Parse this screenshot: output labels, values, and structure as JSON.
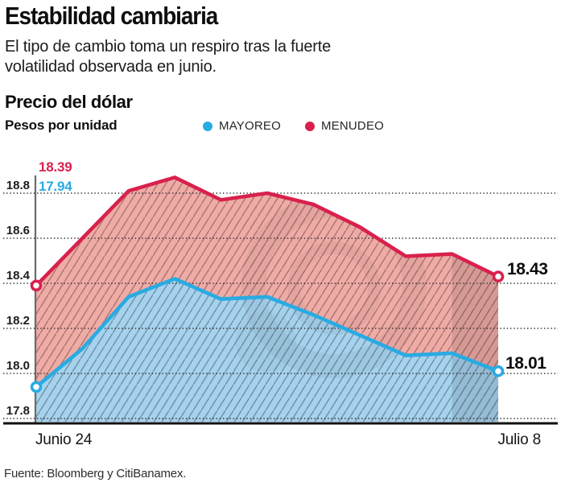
{
  "header": {
    "title": "Estabilidad cambiaria",
    "subtitle": "El tipo de cambio toma un respiro tras la fuerte\nvolatilidad observada en junio."
  },
  "chart": {
    "title": "Precio del dólar",
    "units": "Pesos por unidad",
    "legend": [
      {
        "label": "MAYOREO",
        "color": "#29ABE2"
      },
      {
        "label": "MENUDEO",
        "color": "#D8214D"
      }
    ]
  },
  "chart_data": {
    "type": "area",
    "title": "Precio del dólar",
    "ylabel": "Pesos por unidad",
    "x_start_label": "Junio 24",
    "x_end_label": "Julio 8",
    "y_ticks": [
      "18.8",
      "18.6",
      "18.4",
      "18.2",
      "18.0",
      "17.8"
    ],
    "ylim": [
      17.8,
      18.9
    ],
    "grid": "dotted-horizontal",
    "legend_position": "top",
    "highlight_last_interval": true,
    "series": [
      {
        "name": "MENUDEO",
        "color": "#D8214D",
        "fill": "#EFACA7",
        "hatch": "#9A625C",
        "values": [
          18.39,
          18.6,
          18.81,
          18.87,
          18.77,
          18.8,
          18.75,
          18.65,
          18.52,
          18.53,
          18.43
        ]
      },
      {
        "name": "MAYOREO",
        "color": "#29ABE2",
        "fill": "#A6D2ED",
        "hatch": "#5B7D92",
        "values": [
          17.94,
          18.11,
          18.34,
          18.42,
          18.33,
          18.34,
          18.26,
          18.17,
          18.08,
          18.09,
          18.01
        ]
      }
    ],
    "annotations": {
      "start_menudeo": "18.39",
      "start_mayoreo": "17.94",
      "end_menudeo": "18.43",
      "end_mayoreo": "18.01"
    }
  },
  "footer": {
    "source": "Fuente: Bloomberg y CitiBanamex."
  }
}
